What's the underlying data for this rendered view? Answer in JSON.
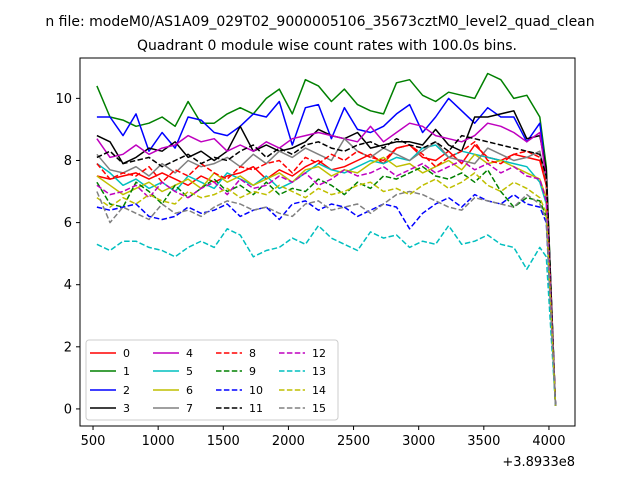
{
  "chart_data": {
    "type": "line",
    "suptitle": "n file: modeM0/AS1A09_029T02_9000005106_35673cztM0_level2_quad_clean",
    "title": "Quadrant 0 module wise count rates with 100.0s bins.",
    "xlabel": "",
    "ylabel": "",
    "offset_text": "+3.8933e8",
    "xlim": [
      400,
      4200
    ],
    "ylim": [
      -0.55,
      11.3
    ],
    "xticks": [
      500,
      1000,
      1500,
      2000,
      2500,
      3000,
      3500,
      4000
    ],
    "yticks": [
      0,
      2,
      4,
      6,
      8,
      10
    ],
    "x": [
      530,
      630,
      730,
      830,
      930,
      1030,
      1130,
      1230,
      1330,
      1430,
      1530,
      1630,
      1730,
      1830,
      1930,
      2030,
      2130,
      2230,
      2330,
      2430,
      2530,
      2630,
      2730,
      2830,
      2930,
      3030,
      3130,
      3230,
      3330,
      3430,
      3530,
      3630,
      3730,
      3830,
      3930,
      3980,
      4050
    ],
    "series": [
      {
        "name": "0",
        "color": "#ff0000",
        "dash": "solid",
        "values": [
          7.5,
          7.4,
          7.5,
          7.6,
          7.4,
          7.6,
          7.4,
          7.2,
          7.5,
          7.3,
          7.5,
          7.6,
          7.8,
          7.4,
          7.7,
          7.5,
          7.8,
          8.0,
          7.7,
          7.8,
          8.0,
          8.2,
          7.9,
          8.4,
          8.5,
          8.1,
          8.0,
          8.3,
          7.9,
          8.5,
          8.1,
          8.0,
          8.2,
          8.1,
          8.0,
          7.2,
          0.1
        ]
      },
      {
        "name": "1",
        "color": "#008000",
        "dash": "solid",
        "values": [
          10.4,
          9.4,
          9.3,
          9.1,
          9.2,
          9.4,
          9.1,
          9.9,
          9.2,
          9.2,
          9.5,
          9.7,
          9.5,
          10.0,
          10.3,
          9.5,
          10.6,
          10.4,
          9.9,
          10.3,
          9.8,
          9.6,
          9.5,
          10.5,
          10.6,
          10.1,
          9.9,
          10.2,
          10.1,
          10.0,
          10.8,
          10.6,
          10.0,
          10.1,
          9.4,
          7.8,
          0.1
        ]
      },
      {
        "name": "2",
        "color": "#0000ff",
        "dash": "solid",
        "values": [
          9.4,
          9.4,
          8.8,
          9.5,
          8.3,
          8.9,
          8.4,
          9.4,
          9.3,
          8.9,
          8.8,
          9.1,
          9.5,
          9.4,
          9.9,
          8.5,
          9.7,
          9.8,
          8.7,
          9.7,
          9.0,
          8.9,
          9.1,
          9.5,
          9.8,
          8.9,
          9.4,
          10.0,
          9.6,
          9.2,
          9.7,
          9.4,
          9.4,
          8.6,
          9.2,
          7.5,
          0.1
        ]
      },
      {
        "name": "3",
        "color": "#000000",
        "dash": "solid",
        "values": [
          8.8,
          8.6,
          7.9,
          8.1,
          8.4,
          8.3,
          8.6,
          8.1,
          8.3,
          8.0,
          8.3,
          9.1,
          8.3,
          8.5,
          8.3,
          8.4,
          8.6,
          9.0,
          8.8,
          8.7,
          8.9,
          8.4,
          8.5,
          8.6,
          8.6,
          8.5,
          9.0,
          8.5,
          8.3,
          9.4,
          9.4,
          9.5,
          9.6,
          8.7,
          8.8,
          7.7,
          0.1
        ]
      },
      {
        "name": "4",
        "color": "#bf00bf",
        "dash": "solid",
        "values": [
          8.7,
          8.1,
          8.2,
          8.5,
          8.2,
          8.4,
          8.5,
          8.8,
          8.6,
          8.7,
          8.3,
          8.5,
          8.3,
          8.6,
          8.4,
          8.7,
          8.8,
          8.9,
          8.8,
          8.7,
          8.6,
          9.1,
          8.6,
          8.9,
          9.2,
          9.1,
          8.8,
          8.7,
          8.6,
          8.8,
          9.2,
          9.1,
          8.9,
          8.6,
          8.9,
          7.4,
          0.1
        ]
      },
      {
        "name": "5",
        "color": "#00bfbf",
        "dash": "solid",
        "values": [
          7.9,
          7.6,
          7.2,
          7.4,
          7.1,
          7.3,
          7.0,
          7.5,
          7.3,
          7.1,
          7.6,
          7.4,
          7.2,
          7.5,
          7.1,
          7.3,
          7.6,
          7.9,
          7.7,
          7.6,
          7.8,
          8.0,
          7.9,
          8.1,
          8.0,
          8.4,
          8.5,
          8.1,
          8.3,
          8.2,
          8.1,
          8.0,
          7.9,
          7.8,
          7.3,
          6.6,
          0.1
        ]
      },
      {
        "name": "6",
        "color": "#bfbf00",
        "dash": "solid",
        "values": [
          7.5,
          7.2,
          6.9,
          7.1,
          7.3,
          7.0,
          7.2,
          7.4,
          7.1,
          7.6,
          7.3,
          7.5,
          7.2,
          7.4,
          7.6,
          7.3,
          7.7,
          7.8,
          7.5,
          7.7,
          7.6,
          7.9,
          8.1,
          7.8,
          7.9,
          7.6,
          7.8,
          8.0,
          7.7,
          8.2,
          7.9,
          8.0,
          7.8,
          7.6,
          7.4,
          6.8,
          0.1
        ]
      },
      {
        "name": "7",
        "color": "#808080",
        "dash": "solid",
        "values": [
          8.2,
          7.7,
          7.6,
          7.8,
          7.5,
          7.9,
          7.6,
          8.0,
          7.8,
          7.9,
          8.1,
          7.8,
          8.2,
          7.9,
          8.3,
          8.1,
          8.4,
          8.2,
          8.0,
          8.7,
          8.3,
          8.1,
          8.4,
          8.2,
          8.0,
          8.3,
          8.6,
          8.1,
          8.0,
          7.9,
          8.4,
          8.2,
          8.0,
          8.1,
          8.3,
          7.3,
          0.1
        ]
      },
      {
        "name": "8",
        "color": "#ff0000",
        "dash": "dashed",
        "values": [
          7.9,
          7.4,
          7.6,
          7.5,
          7.8,
          7.3,
          7.7,
          7.5,
          7.9,
          7.6,
          7.4,
          7.8,
          7.7,
          7.9,
          8.0,
          7.6,
          8.1,
          7.9,
          8.2,
          8.0,
          8.3,
          8.1,
          8.0,
          8.4,
          8.5,
          8.2,
          7.8,
          8.1,
          8.3,
          8.6,
          8.0,
          7.9,
          8.2,
          8.3,
          8.1,
          7.2,
          0.1
        ]
      },
      {
        "name": "9",
        "color": "#008000",
        "dash": "dashed",
        "values": [
          7.3,
          6.6,
          6.5,
          7.3,
          7.0,
          6.6,
          7.2,
          6.8,
          7.1,
          7.4,
          7.0,
          7.2,
          6.9,
          7.3,
          6.9,
          7.1,
          7.0,
          7.4,
          7.2,
          6.9,
          7.3,
          7.1,
          7.5,
          7.4,
          7.6,
          7.8,
          7.5,
          7.4,
          7.6,
          7.3,
          7.7,
          7.0,
          6.5,
          6.8,
          6.7,
          6.2,
          0.1
        ]
      },
      {
        "name": "10",
        "color": "#0000ff",
        "dash": "dashed",
        "values": [
          6.5,
          6.4,
          6.5,
          6.6,
          6.2,
          6.1,
          6.2,
          6.5,
          6.3,
          6.4,
          6.6,
          6.2,
          6.4,
          6.5,
          6.1,
          6.6,
          6.7,
          6.4,
          6.6,
          6.5,
          6.2,
          6.4,
          6.6,
          6.5,
          5.8,
          6.3,
          6.6,
          6.8,
          6.5,
          6.9,
          6.7,
          6.6,
          6.9,
          6.6,
          6.5,
          6.0,
          0.1
        ]
      },
      {
        "name": "11",
        "color": "#000000",
        "dash": "dashed",
        "values": [
          8.1,
          8.3,
          7.9,
          8.0,
          8.1,
          7.8,
          8.0,
          8.2,
          7.9,
          8.1,
          8.0,
          8.3,
          8.5,
          8.1,
          8.4,
          8.2,
          8.5,
          8.6,
          8.4,
          8.3,
          8.5,
          8.6,
          8.4,
          8.7,
          8.5,
          8.4,
          8.6,
          8.3,
          8.8,
          8.7,
          8.6,
          8.5,
          8.4,
          8.3,
          8.2,
          7.5,
          0.1
        ]
      },
      {
        "name": "12",
        "color": "#bf00bf",
        "dash": "dashed",
        "values": [
          7.2,
          6.9,
          7.0,
          7.2,
          6.8,
          7.3,
          7.0,
          6.8,
          7.1,
          7.3,
          6.9,
          7.4,
          7.1,
          7.2,
          7.5,
          7.3,
          7.6,
          7.2,
          7.4,
          7.7,
          7.5,
          7.6,
          7.8,
          7.5,
          7.7,
          7.9,
          7.6,
          7.8,
          8.0,
          7.7,
          7.9,
          7.6,
          7.8,
          7.5,
          7.4,
          6.7,
          0.1
        ]
      },
      {
        "name": "13",
        "color": "#00bfbf",
        "dash": "dashed",
        "values": [
          5.3,
          5.1,
          5.4,
          5.4,
          5.2,
          5.1,
          4.9,
          5.2,
          5.4,
          5.2,
          5.8,
          5.6,
          4.9,
          5.1,
          5.2,
          5.5,
          5.3,
          5.9,
          5.5,
          5.3,
          5.1,
          5.7,
          5.5,
          5.6,
          5.2,
          5.4,
          5.3,
          5.9,
          5.3,
          5.4,
          5.6,
          5.3,
          5.2,
          4.5,
          5.2,
          4.9,
          0.1
        ]
      },
      {
        "name": "14",
        "color": "#bfbf00",
        "dash": "dashed",
        "values": [
          6.8,
          6.5,
          6.8,
          6.6,
          6.9,
          6.7,
          6.6,
          7.0,
          6.8,
          6.9,
          7.1,
          6.8,
          7.0,
          6.9,
          7.2,
          7.0,
          6.8,
          7.1,
          6.9,
          7.0,
          7.2,
          7.3,
          7.0,
          7.1,
          6.9,
          7.2,
          7.4,
          7.1,
          7.3,
          7.6,
          7.2,
          7.0,
          7.3,
          7.1,
          6.8,
          6.3,
          0.1
        ]
      },
      {
        "name": "15",
        "color": "#808080",
        "dash": "dashed",
        "values": [
          7.0,
          6.0,
          6.5,
          6.3,
          6.1,
          6.6,
          6.3,
          6.4,
          6.2,
          6.5,
          6.7,
          6.6,
          6.4,
          6.5,
          6.3,
          6.2,
          6.6,
          6.7,
          6.4,
          6.5,
          6.6,
          6.3,
          6.6,
          6.9,
          7.0,
          6.9,
          6.7,
          6.5,
          6.4,
          6.8,
          6.7,
          6.6,
          6.5,
          6.9,
          6.6,
          6.1,
          0.1
        ]
      }
    ],
    "legend_loc": "lower left",
    "grid": false
  }
}
